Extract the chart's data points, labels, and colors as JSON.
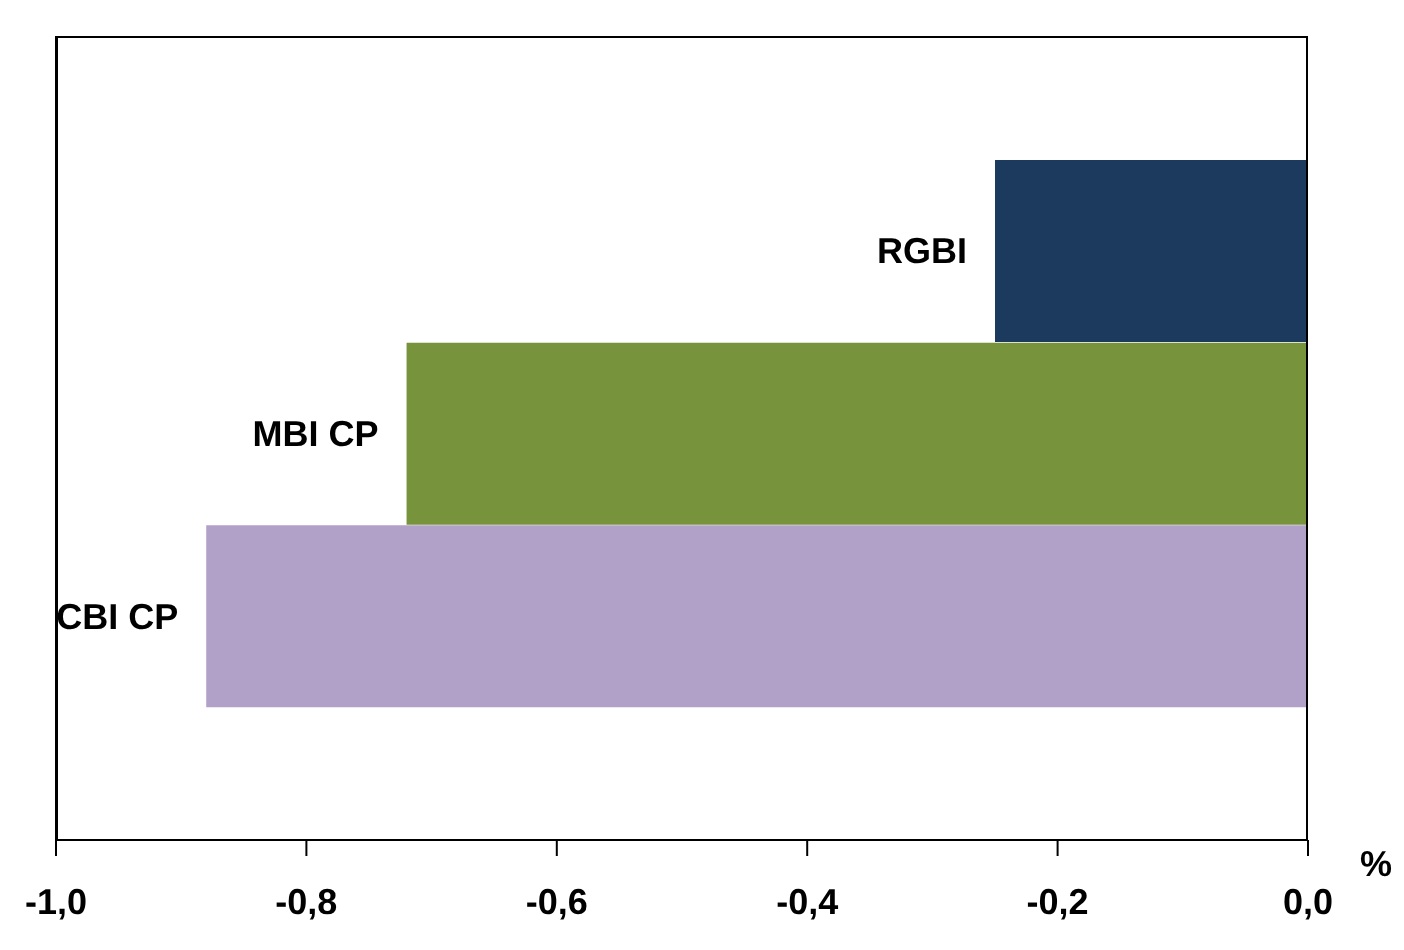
{
  "chart_data": {
    "type": "bar",
    "orientation": "horizontal",
    "xlabel": "%",
    "categories": [
      "RGBI",
      "MBI CP",
      "CBI CP"
    ],
    "values": [
      -0.25,
      -0.72,
      -0.88
    ],
    "colors": [
      "#1b3a5e",
      "#77933c",
      "#b1a0c7"
    ],
    "xlim": [
      -1,
      0
    ],
    "xticks": [
      {
        "value": -1,
        "label": "-1,0"
      },
      {
        "value": -0.8,
        "label": "-0,8"
      },
      {
        "value": -0.6,
        "label": "-0,6"
      },
      {
        "value": -0.4,
        "label": "-0,4"
      },
      {
        "value": -0.2,
        "label": "-0,2"
      },
      {
        "value": 0,
        "label": "0,0"
      }
    ],
    "grid": false,
    "legend": false
  }
}
